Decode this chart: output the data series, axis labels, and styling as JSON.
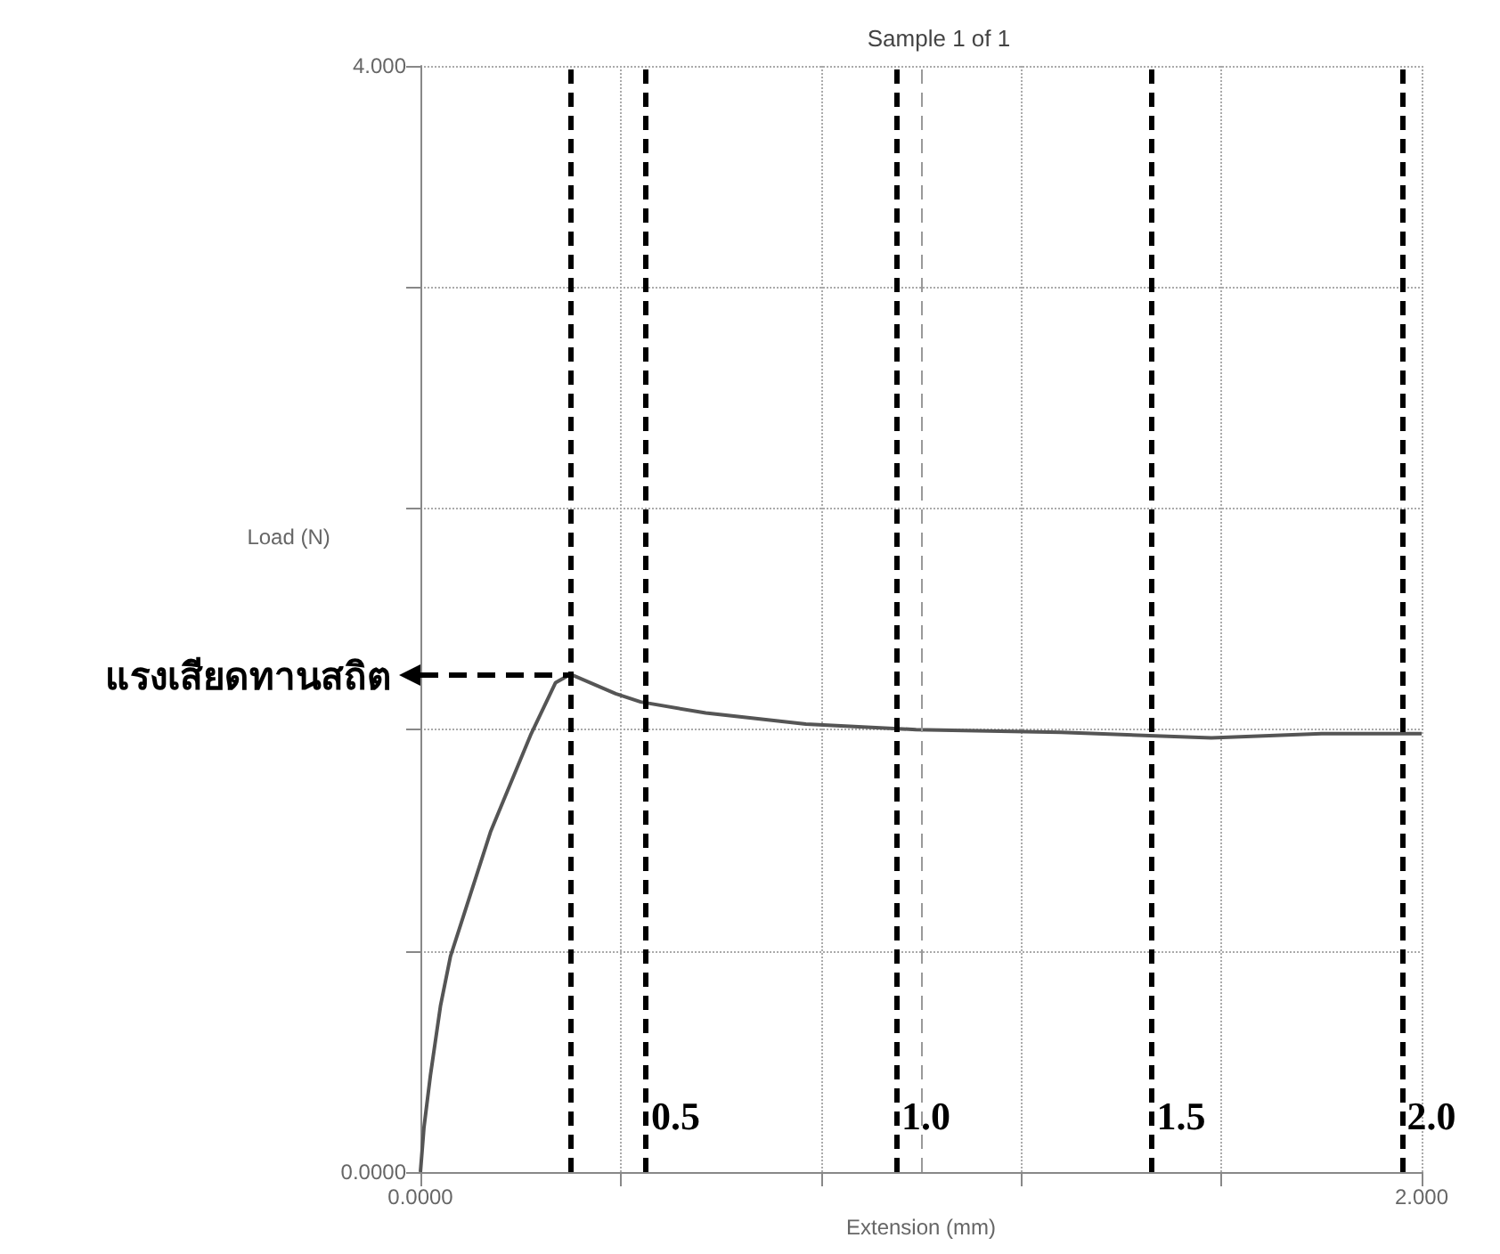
{
  "chart_data": {
    "type": "line",
    "title": "Sample 1 of 1",
    "xlabel": "Extension (mm)",
    "ylabel": "Load (N)",
    "x": [
      0,
      0.007,
      0.02,
      0.04,
      0.06,
      0.14,
      0.22,
      0.27,
      0.3,
      0.39,
      0.44,
      0.57,
      0.77,
      0.99,
      1.28,
      1.58,
      1.8,
      2.0
    ],
    "series": [
      {
        "color": "#555555",
        "values": [
          0,
          0.16,
          0.35,
          0.6,
          0.78,
          1.23,
          1.58,
          1.77,
          1.8,
          1.73,
          1.7,
          1.66,
          1.62,
          1.6,
          1.59,
          1.57,
          1.585,
          1.585
        ]
      }
    ],
    "xlim": [
      0,
      2
    ],
    "xticks": [
      {
        "value": 0,
        "label": "0.0000"
      },
      {
        "value": 0.4,
        "label": null
      },
      {
        "value": 0.8,
        "label": null
      },
      {
        "value": 1.2,
        "label": null
      },
      {
        "value": 1.6,
        "label": null
      },
      {
        "value": 2,
        "label": "2.000"
      }
    ],
    "ylim": [
      0,
      4
    ],
    "yticks": [
      {
        "value": 0,
        "label": "0.0000"
      },
      {
        "value": 0.8,
        "label": null
      },
      {
        "value": 1.6,
        "label": null
      },
      {
        "value": 2.4,
        "label": null
      },
      {
        "value": 3.2,
        "label": null
      },
      {
        "value": 4,
        "label": "4.000"
      }
    ],
    "grid": true,
    "marker": "none",
    "line_style": "solid",
    "ref_lines": [
      {
        "axis": "x",
        "value": 1.0,
        "color": "#999999",
        "line_style": "dashed"
      },
      {
        "axis": "x",
        "value": 0.3,
        "color": "#000000",
        "line_style": "dashed"
      },
      {
        "axis": "x",
        "value": 0.45,
        "label": "0.5",
        "color": "#000000",
        "line_style": "dashed"
      },
      {
        "axis": "x",
        "value": 0.95,
        "label": "1.0",
        "color": "#000000",
        "line_style": "dashed"
      },
      {
        "axis": "x",
        "value": 1.46,
        "label": "1.5",
        "color": "#000000",
        "line_style": "dashed"
      },
      {
        "axis": "x",
        "value": 1.96,
        "label": "2.0",
        "color": "#000000",
        "line_style": "dashed"
      }
    ],
    "annotations": [
      {
        "text": "แรงเสียดทานสถิต",
        "x": 0.3,
        "y": 1.8
      }
    ]
  }
}
